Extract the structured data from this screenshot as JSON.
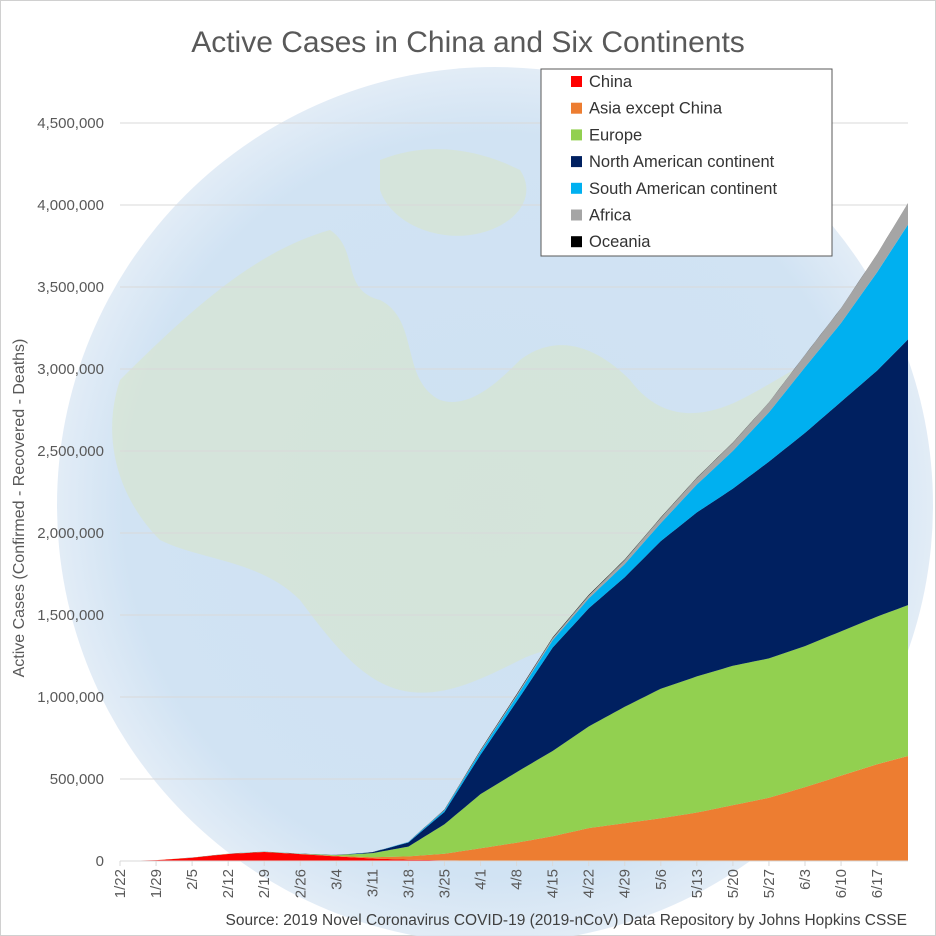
{
  "chart_data": {
    "type": "area",
    "stacked": true,
    "title": "Active Cases in China and Six Continents",
    "ylabel": "Active Cases (Confirmed - Recovered - Deaths)",
    "source": "Source: 2019 Novel Coronavirus COVID-19 (2019-nCoV) Data Repository by Johns Hopkins CSSE",
    "ylim": [
      0,
      4500000
    ],
    "y_ticks": [
      "0",
      "500,000",
      "1,000,000",
      "1,500,000",
      "2,000,000",
      "2,500,000",
      "3,000,000",
      "3,500,000",
      "4,000,000",
      "4,500,000"
    ],
    "y_tick_values": [
      0,
      500000,
      1000000,
      1500000,
      2000000,
      2500000,
      3000000,
      3500000,
      4000000,
      4500000
    ],
    "x_ticks": [
      "1/22",
      "1/29",
      "2/5",
      "2/12",
      "2/19",
      "2/26",
      "3/4",
      "3/11",
      "3/18",
      "3/25",
      "4/1",
      "4/8",
      "4/15",
      "4/22",
      "4/29",
      "5/6",
      "5/13",
      "5/20",
      "5/27",
      "6/3",
      "6/10",
      "6/17"
    ],
    "x_days_from_start": [
      0,
      7,
      14,
      21,
      28,
      35,
      42,
      49,
      56,
      63,
      70,
      77,
      84,
      91,
      98,
      105,
      112,
      119,
      126,
      133,
      140,
      147
    ],
    "x_last_day": 153,
    "grid": "horizontal",
    "legend_position": "top-right",
    "background_image": "globe",
    "series": [
      {
        "name": "China",
        "color": "#ff0000",
        "points": [
          [
            0,
            0
          ],
          [
            7,
            5000
          ],
          [
            14,
            20000
          ],
          [
            21,
            43000
          ],
          [
            28,
            55000
          ],
          [
            35,
            42000
          ],
          [
            42,
            28000
          ],
          [
            49,
            15000
          ],
          [
            56,
            8000
          ],
          [
            63,
            4000
          ],
          [
            70,
            2500
          ],
          [
            77,
            1500
          ],
          [
            84,
            1000
          ],
          [
            91,
            500
          ],
          [
            153,
            300
          ]
        ]
      },
      {
        "name": "Asia except China",
        "color": "#ed7d31",
        "points": [
          [
            0,
            0
          ],
          [
            35,
            1000
          ],
          [
            42,
            3000
          ],
          [
            49,
            8000
          ],
          [
            56,
            20000
          ],
          [
            63,
            40000
          ],
          [
            70,
            75000
          ],
          [
            77,
            110000
          ],
          [
            84,
            150000
          ],
          [
            91,
            200000
          ],
          [
            98,
            230000
          ],
          [
            105,
            260000
          ],
          [
            112,
            295000
          ],
          [
            119,
            340000
          ],
          [
            126,
            385000
          ],
          [
            133,
            450000
          ],
          [
            140,
            520000
          ],
          [
            147,
            590000
          ],
          [
            153,
            640000
          ]
        ]
      },
      {
        "name": "Europe",
        "color": "#92d050",
        "points": [
          [
            0,
            0
          ],
          [
            35,
            1000
          ],
          [
            42,
            5000
          ],
          [
            49,
            25000
          ],
          [
            56,
            60000
          ],
          [
            63,
            180000
          ],
          [
            70,
            330000
          ],
          [
            77,
            430000
          ],
          [
            84,
            520000
          ],
          [
            91,
            620000
          ],
          [
            98,
            710000
          ],
          [
            105,
            790000
          ],
          [
            112,
            830000
          ],
          [
            119,
            850000
          ],
          [
            126,
            850000
          ],
          [
            133,
            860000
          ],
          [
            140,
            880000
          ],
          [
            147,
            900000
          ],
          [
            153,
            920000
          ]
        ]
      },
      {
        "name": "North American continent",
        "color": "#002060",
        "points": [
          [
            0,
            0
          ],
          [
            42,
            500
          ],
          [
            49,
            5000
          ],
          [
            56,
            25000
          ],
          [
            63,
            75000
          ],
          [
            70,
            240000
          ],
          [
            77,
            430000
          ],
          [
            84,
            630000
          ],
          [
            91,
            720000
          ],
          [
            98,
            790000
          ],
          [
            105,
            900000
          ],
          [
            112,
            1000000
          ],
          [
            119,
            1080000
          ],
          [
            126,
            1200000
          ],
          [
            133,
            1300000
          ],
          [
            140,
            1400000
          ],
          [
            147,
            1500000
          ],
          [
            153,
            1620000
          ]
        ]
      },
      {
        "name": "South American continent",
        "color": "#00b0f0",
        "points": [
          [
            0,
            0
          ],
          [
            49,
            300
          ],
          [
            56,
            3000
          ],
          [
            63,
            10000
          ],
          [
            70,
            20000
          ],
          [
            77,
            30000
          ],
          [
            84,
            45000
          ],
          [
            91,
            60000
          ],
          [
            98,
            80000
          ],
          [
            105,
            110000
          ],
          [
            112,
            170000
          ],
          [
            119,
            230000
          ],
          [
            126,
            300000
          ],
          [
            133,
            400000
          ],
          [
            140,
            480000
          ],
          [
            147,
            600000
          ],
          [
            153,
            700000
          ]
        ]
      },
      {
        "name": "Africa",
        "color": "#a5a5a5",
        "points": [
          [
            0,
            0
          ],
          [
            49,
            100
          ],
          [
            56,
            1000
          ],
          [
            63,
            3000
          ],
          [
            70,
            6000
          ],
          [
            77,
            10000
          ],
          [
            84,
            13000
          ],
          [
            91,
            18000
          ],
          [
            98,
            25000
          ],
          [
            105,
            32000
          ],
          [
            112,
            40000
          ],
          [
            119,
            50000
          ],
          [
            126,
            60000
          ],
          [
            133,
            75000
          ],
          [
            140,
            90000
          ],
          [
            147,
            110000
          ],
          [
            153,
            130000
          ]
        ]
      },
      {
        "name": "Oceania",
        "color": "#000000",
        "points": [
          [
            0,
            0
          ],
          [
            56,
            500
          ],
          [
            63,
            2000
          ],
          [
            70,
            4000
          ],
          [
            77,
            4500
          ],
          [
            84,
            4000
          ],
          [
            91,
            3500
          ],
          [
            98,
            3000
          ],
          [
            105,
            2500
          ],
          [
            112,
            2000
          ],
          [
            119,
            1500
          ],
          [
            126,
            1200
          ],
          [
            133,
            1000
          ],
          [
            140,
            1000
          ],
          [
            147,
            1000
          ],
          [
            153,
            1000
          ]
        ]
      }
    ]
  }
}
